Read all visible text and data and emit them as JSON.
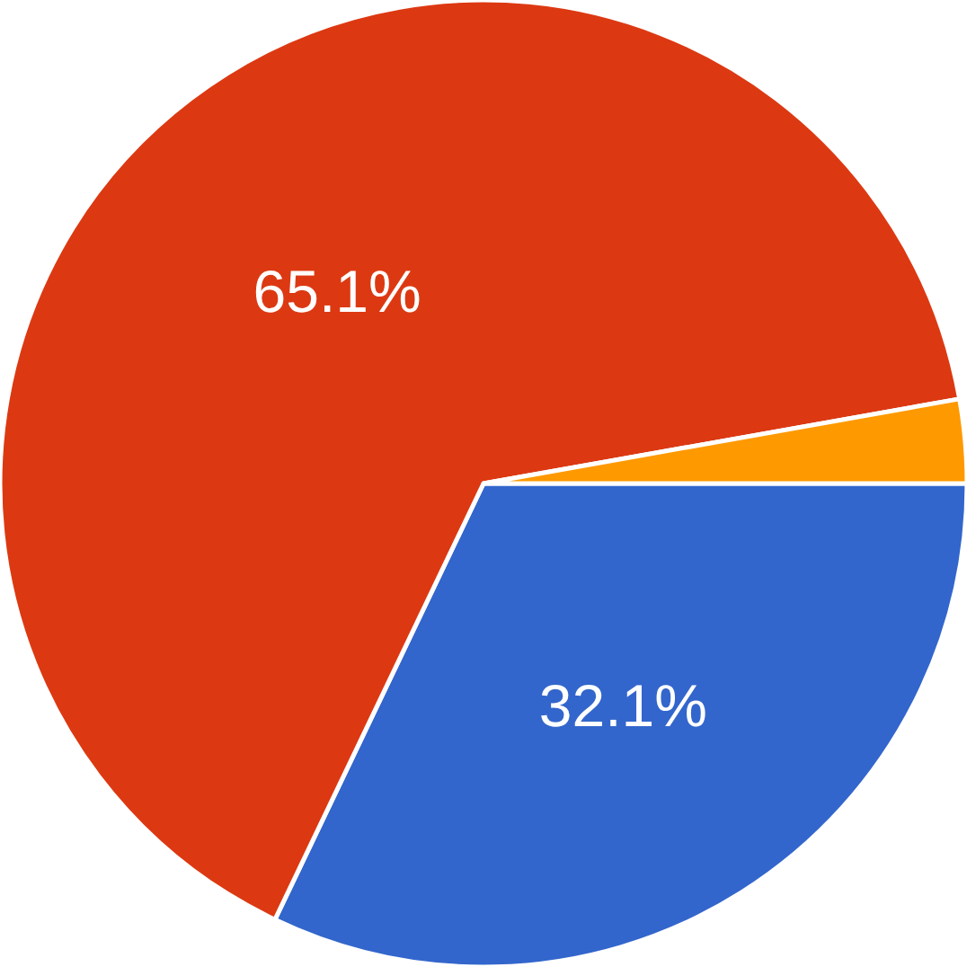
{
  "chart_data": {
    "type": "pie",
    "categories": [
      null,
      null,
      null
    ],
    "values": [
      32.1,
      65.1,
      2.8
    ],
    "colors": [
      "#3366cc",
      "#dc3912",
      "#ff9900"
    ],
    "value_labels": [
      "32.1%",
      "65.1%",
      null
    ]
  }
}
